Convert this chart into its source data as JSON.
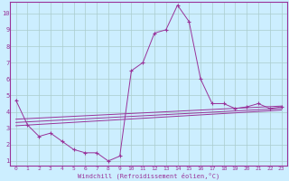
{
  "xlabel": "Windchill (Refroidissement éolien,°C)",
  "bg_color": "#cceeff",
  "grid_color": "#aacccc",
  "line_color": "#993399",
  "xlim": [
    -0.5,
    23.5
  ],
  "ylim": [
    0.7,
    10.7
  ],
  "yticks": [
    1,
    2,
    3,
    4,
    5,
    6,
    7,
    8,
    9,
    10
  ],
  "xticks": [
    0,
    1,
    2,
    3,
    4,
    5,
    6,
    7,
    8,
    9,
    10,
    11,
    12,
    13,
    14,
    15,
    16,
    17,
    18,
    19,
    20,
    21,
    22,
    23
  ],
  "main_line_x": [
    0,
    1,
    2,
    3,
    4,
    5,
    6,
    7,
    8,
    9,
    10,
    11,
    12,
    13,
    14,
    15,
    16,
    17,
    18,
    19,
    20,
    21,
    22,
    23
  ],
  "main_line_y": [
    4.7,
    3.2,
    2.5,
    2.7,
    2.2,
    1.7,
    1.5,
    1.5,
    1.0,
    1.3,
    6.5,
    7.0,
    8.8,
    9.0,
    10.5,
    9.5,
    6.0,
    4.5,
    4.5,
    4.2,
    4.3,
    4.5,
    4.2,
    4.3
  ],
  "line2_x": [
    0,
    23
  ],
  "line2_y": [
    3.55,
    4.35
  ],
  "line3_x": [
    0,
    23
  ],
  "line3_y": [
    3.35,
    4.2
  ],
  "line4_x": [
    0,
    23
  ],
  "line4_y": [
    3.15,
    4.1
  ]
}
